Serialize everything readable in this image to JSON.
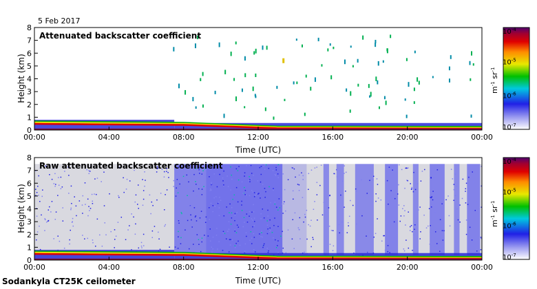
{
  "date": "5 Feb 2017",
  "footer": "Sodankyla CT25K ceilometer",
  "chart_data": [
    {
      "type": "heatmap",
      "title": "Attenuated backscatter coefficient",
      "xlabel": "Time (UTC)",
      "ylabel": "Height (km)",
      "xticks": [
        "00:00",
        "04:00",
        "08:00",
        "12:00",
        "16:00",
        "20:00",
        "00:00"
      ],
      "yticks": [
        "0",
        "1",
        "2",
        "3",
        "4",
        "5",
        "6",
        "7",
        "8"
      ],
      "xlim_hours": [
        0,
        24
      ],
      "ylim_km": [
        0,
        8
      ],
      "colorbar": {
        "scale": "log",
        "range": [
          1e-07,
          0.0001
        ],
        "ticks": [
          "10",
          "10",
          "10",
          "10"
        ],
        "tick_exponents": [
          "-7",
          "-6",
          "-5",
          "-4"
        ],
        "unit": "m",
        "unit_exp1": "-1",
        "unit_sr": " sr",
        "unit_exp2": "-1"
      }
    },
    {
      "type": "heatmap",
      "title": "Raw attenuated backscatter coefficient",
      "xlabel": "Time (UTC)",
      "ylabel": "Height (km)",
      "xticks": [
        "00:00",
        "04:00",
        "08:00",
        "12:00",
        "16:00",
        "20:00",
        "00:00"
      ],
      "yticks": [
        "0",
        "1",
        "2",
        "3",
        "4",
        "5",
        "6",
        "7",
        "8"
      ],
      "xlim_hours": [
        0,
        24
      ],
      "ylim_km": [
        0,
        8
      ],
      "colorbar": {
        "scale": "log",
        "range": [
          1e-07,
          0.0001
        ],
        "ticks": [
          "10",
          "10",
          "10",
          "10"
        ],
        "tick_exponents": [
          "-7",
          "-6",
          "-5",
          "-4"
        ],
        "unit": "m",
        "unit_exp1": "-1",
        "unit_sr": " sr",
        "unit_exp2": "-1"
      }
    }
  ]
}
